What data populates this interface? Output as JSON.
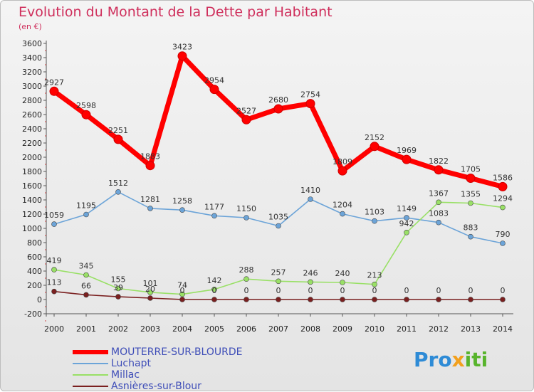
{
  "title": "Evolution du Montant de la Dette par Habitant",
  "subtitle": "(en €)",
  "logo_text": "Proxiti",
  "chart_data": {
    "type": "line",
    "x": [
      "2000",
      "2001",
      "2002",
      "2003",
      "2004",
      "2005",
      "2006",
      "2007",
      "2008",
      "2009",
      "2010",
      "2011",
      "2012",
      "2013",
      "2014"
    ],
    "ylim": [
      -200,
      3600
    ],
    "yticks": [
      -200,
      0,
      200,
      400,
      600,
      800,
      1000,
      1200,
      1400,
      1600,
      1800,
      2000,
      2200,
      2400,
      2600,
      2800,
      3000,
      3200,
      3400,
      3600
    ],
    "grid": false,
    "legend_position": "bottom-left",
    "series": [
      {
        "name": "MOUTERRE-SUR-BLOURDE",
        "color": "#ff0000",
        "values": [
          2927,
          2598,
          2251,
          1883,
          3423,
          2954,
          2527,
          2680,
          2754,
          1809,
          2152,
          1969,
          1822,
          1705,
          1586
        ]
      },
      {
        "name": "Luchapt",
        "color": "#6ca4d8",
        "values": [
          1059,
          1195,
          1512,
          1281,
          1258,
          1177,
          1150,
          1035,
          1410,
          1204,
          1103,
          1149,
          1083,
          883,
          790
        ]
      },
      {
        "name": "Millac",
        "color": "#99e066",
        "values": [
          419,
          345,
          155,
          101,
          74,
          142,
          288,
          257,
          246,
          240,
          213,
          942,
          1367,
          1355,
          1294
        ]
      },
      {
        "name": "Asnières-sur-Blour",
        "color": "#7a1f1f",
        "values": [
          113,
          66,
          39,
          20,
          0,
          0,
          0,
          0,
          0,
          0,
          0,
          0,
          0,
          0,
          0
        ]
      }
    ]
  }
}
